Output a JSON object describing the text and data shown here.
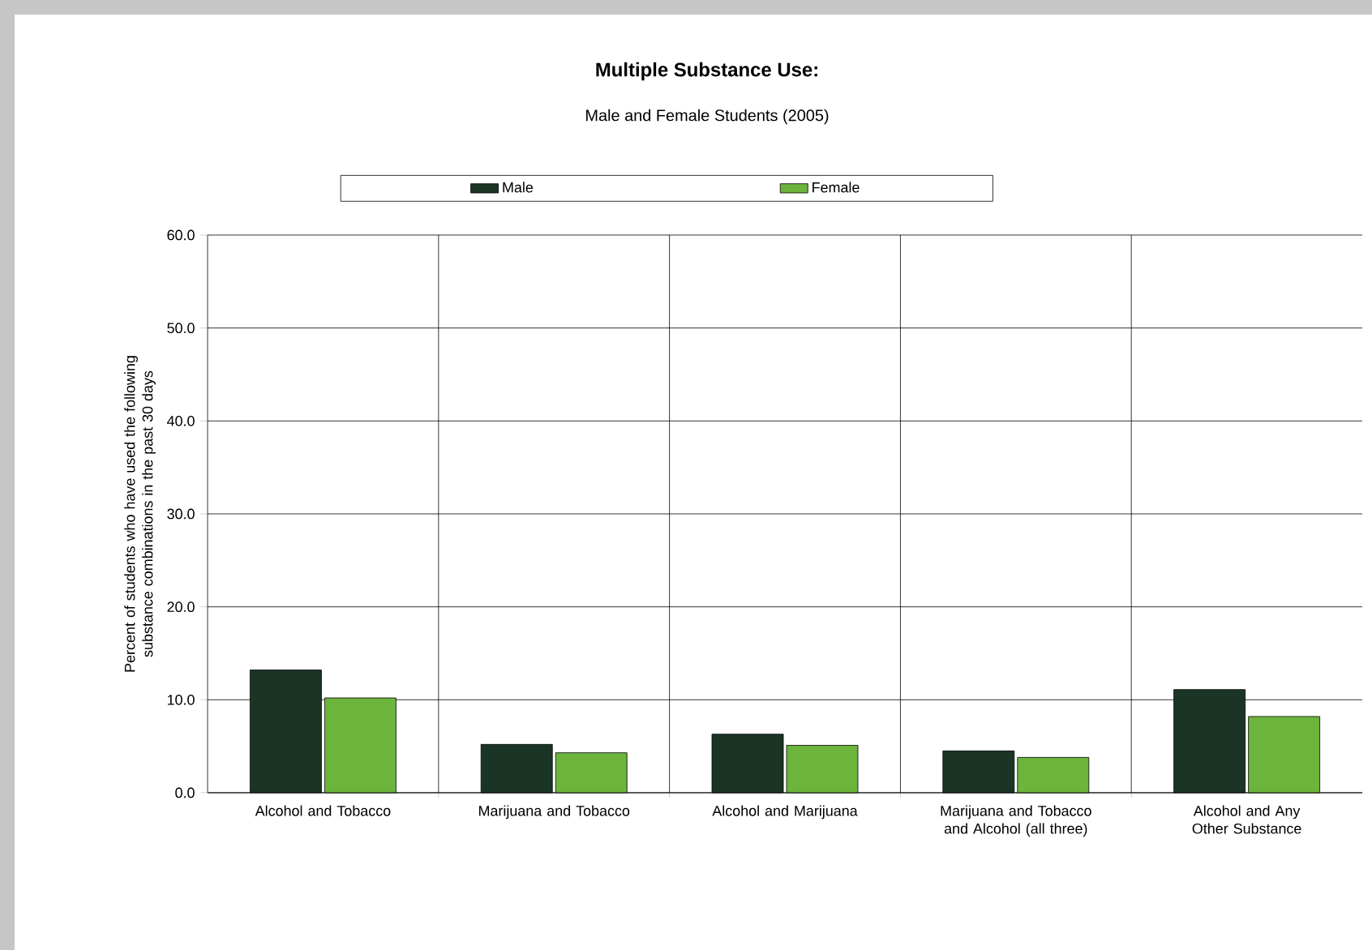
{
  "chart_data": {
    "type": "bar",
    "title": "Multiple Substance Use:",
    "subtitle": "Male and Female Students (2005)",
    "ylabel": "Percent of students who have used the following substance combinations in the past 30 days",
    "categories": [
      "Alcohol and Tobacco",
      "Marijuana and Tobacco",
      "Alcohol and Marijuana",
      "Marijuana and Tobacco and Alcohol (all three)",
      "Alcohol and Any Other Substance"
    ],
    "series": [
      {
        "name": "Male",
        "color": "#1a3526",
        "values": [
          13.2,
          5.2,
          6.3,
          4.5,
          11.1
        ]
      },
      {
        "name": "Female",
        "color": "#6cb43c",
        "values": [
          10.2,
          4.3,
          5.1,
          3.8,
          8.2
        ]
      }
    ],
    "ylim": [
      0,
      60
    ],
    "yticks": [
      {
        "value": 0,
        "label": "0.0"
      },
      {
        "value": 10,
        "label": "10.0"
      },
      {
        "value": 20,
        "label": "20.0"
      },
      {
        "value": 30,
        "label": "30.0"
      },
      {
        "value": 40,
        "label": "40.0"
      },
      {
        "value": 50,
        "label": "50.0"
      },
      {
        "value": 60,
        "label": "60.0"
      }
    ],
    "grid": true,
    "legend": "top"
  }
}
